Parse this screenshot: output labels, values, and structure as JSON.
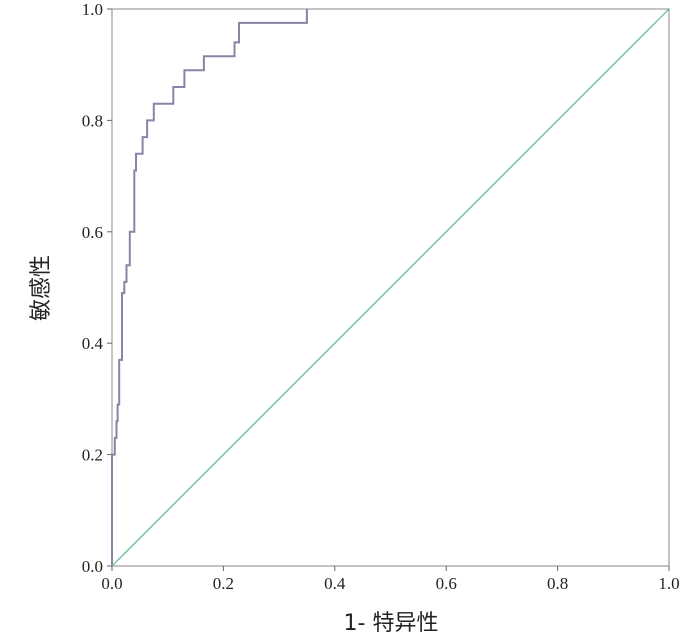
{
  "chart_data": {
    "type": "line",
    "title": "",
    "xlabel": "1- 特异性",
    "ylabel": "敏感性",
    "xlim": [
      0,
      1
    ],
    "ylim": [
      0,
      1
    ],
    "x_ticks": [
      "0.0",
      "0.2",
      "0.4",
      "0.6",
      "0.8",
      "1.0"
    ],
    "y_ticks": [
      "0.0",
      "0.2",
      "0.4",
      "0.6",
      "0.8",
      "1.0"
    ],
    "grid": false,
    "legend": "none",
    "series": [
      {
        "color": "#8585a8",
        "style": "step",
        "x": [
          0.0,
          0.0,
          0.005,
          0.005,
          0.008,
          0.008,
          0.01,
          0.01,
          0.013,
          0.013,
          0.018,
          0.018,
          0.022,
          0.022,
          0.026,
          0.026,
          0.032,
          0.032,
          0.04,
          0.04,
          0.043,
          0.043,
          0.055,
          0.055,
          0.063,
          0.063,
          0.075,
          0.075,
          0.11,
          0.11,
          0.13,
          0.13,
          0.165,
          0.165,
          0.22,
          0.22,
          0.228,
          0.228,
          0.35,
          0.35
        ],
        "y": [
          0.0,
          0.2,
          0.2,
          0.23,
          0.23,
          0.26,
          0.26,
          0.29,
          0.29,
          0.37,
          0.37,
          0.49,
          0.49,
          0.51,
          0.51,
          0.54,
          0.54,
          0.6,
          0.6,
          0.71,
          0.71,
          0.74,
          0.74,
          0.77,
          0.77,
          0.8,
          0.8,
          0.83,
          0.83,
          0.86,
          0.86,
          0.89,
          0.89,
          0.915,
          0.915,
          0.94,
          0.94,
          0.975,
          0.975,
          1.0
        ]
      },
      {
        "color": "#5fb39a",
        "style": "line",
        "x": [
          0,
          1
        ],
        "y": [
          0,
          1
        ]
      }
    ]
  }
}
